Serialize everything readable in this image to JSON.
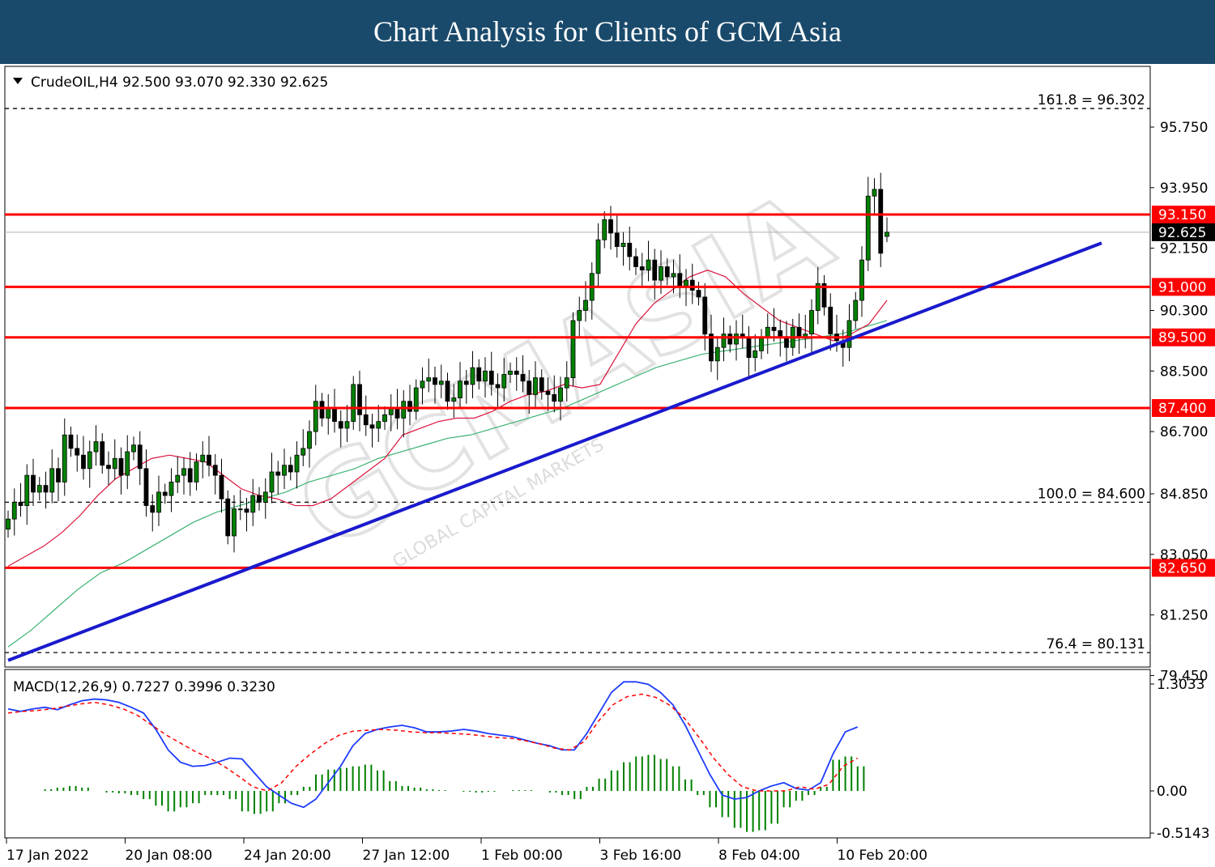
{
  "header": {
    "title": "Chart Analysis for Clients of GCM Asia"
  },
  "watermark": {
    "brand": "GCMASIA",
    "tagline": "GLOBAL CAPITAL MARKETS"
  },
  "colors": {
    "bull": "#008000",
    "bear": "#000000",
    "levels": "#ff0000",
    "trendline": "#1a1acd",
    "ma_fast": "#dc143c",
    "ma_slow": "#3cb371",
    "macd_main": "#1e3cff",
    "macd_signal": "#ff0000",
    "macd_hist": "#008000"
  },
  "chart_data": [
    {
      "type": "candlestick",
      "symbol_info": "CrudeOIL,H4  92.500 93.070 92.330 92.625",
      "timeframe": "H4",
      "ohlc_current": {
        "open": 92.5,
        "high": 93.07,
        "low": 92.33,
        "close": 92.625
      },
      "ylim": [
        79.0,
        97.0
      ],
      "y_ticks": [
        "95.750",
        "93.950",
        "92.150",
        "90.300",
        "88.500",
        "86.700",
        "84.850",
        "83.050",
        "81.250",
        "79.450"
      ],
      "x_tick_labels": [
        "17 Jan 2022",
        "20 Jan 08:00",
        "24 Jan 20:00",
        "27 Jan 12:00",
        "1 Feb 00:00",
        "3 Feb 16:00",
        "8 Feb 04:00",
        "10 Feb 20:00"
      ],
      "current_price_label": "92.625",
      "horizontal_levels": [
        {
          "value": 93.15,
          "label": "93.150"
        },
        {
          "value": 91.0,
          "label": "91.000"
        },
        {
          "value": 89.5,
          "label": "89.500"
        },
        {
          "value": 87.4,
          "label": "87.400"
        },
        {
          "value": 82.65,
          "label": "82.650"
        }
      ],
      "fibonacci_levels": [
        {
          "value": 96.302,
          "label": "161.8 = 96.302"
        },
        {
          "value": 84.6,
          "label": "100.0 = 84.600"
        },
        {
          "value": 80.131,
          "label": "76.4 = 80.131"
        }
      ],
      "trendline": [
        {
          "bar": 0,
          "value": 79.9
        },
        {
          "bar": 140,
          "value": 92.3
        }
      ],
      "closes": [
        84.1,
        84.6,
        84.5,
        85.4,
        84.9,
        85.1,
        84.9,
        85.6,
        85.2,
        86.6,
        86.2,
        86.0,
        85.6,
        86.1,
        86.4,
        85.7,
        85.6,
        85.9,
        85.4,
        86.1,
        86.3,
        85.6,
        84.5,
        84.3,
        84.9,
        84.8,
        85.2,
        85.4,
        85.6,
        85.2,
        85.8,
        86.0,
        85.7,
        85.4,
        84.7,
        83.6,
        84.4,
        84.4,
        84.3,
        84.8,
        84.6,
        84.9,
        85.5,
        85.4,
        85.7,
        85.5,
        86.0,
        86.2,
        86.7,
        87.6,
        87.1,
        87.4,
        87.0,
        86.8,
        87.0,
        88.1,
        87.2,
        86.9,
        86.8,
        87.0,
        87.2,
        87.4,
        87.1,
        87.6,
        87.3,
        88.0,
        88.2,
        88.3,
        88.1,
        88.2,
        87.6,
        87.7,
        88.2,
        88.1,
        88.6,
        88.2,
        88.5,
        88.1,
        88.0,
        88.4,
        88.5,
        88.4,
        88.2,
        87.8,
        88.3,
        87.9,
        87.8,
        87.6,
        88.0,
        88.3,
        90.0,
        90.3,
        90.6,
        91.4,
        92.4,
        93.0,
        92.6,
        92.2,
        92.3,
        91.9,
        91.6,
        91.5,
        91.8,
        91.2,
        91.6,
        91.3,
        91.4,
        91.0,
        91.2,
        90.9,
        90.7,
        89.6,
        88.8,
        89.2,
        89.6,
        89.3,
        89.6,
        89.5,
        88.9,
        89.1,
        89.5,
        89.8,
        89.7,
        89.5,
        89.2,
        89.8,
        89.5,
        89.6,
        90.3,
        91.1,
        90.4,
        89.6,
        89.4,
        89.2,
        90.0,
        90.6,
        91.8,
        93.7,
        93.9,
        92.0,
        92.625
      ],
      "ma_fast": {
        "name": "MA fast",
        "start_bar": 0,
        "values": [
          82.7,
          83.0,
          83.3,
          83.7,
          84.2,
          84.8,
          85.3,
          85.6,
          85.9,
          86.0,
          85.9,
          85.8,
          85.4,
          85.0,
          84.8,
          84.7,
          84.5,
          84.5,
          84.7,
          85.1,
          85.5,
          85.9,
          86.6,
          86.8,
          87.0,
          87.1,
          87.1,
          87.3,
          87.6,
          87.8,
          87.9,
          88.1,
          88.0,
          88.1,
          89.0,
          89.9,
          90.5,
          90.9,
          91.3,
          91.5,
          91.3,
          90.8,
          90.4,
          90.0,
          89.8,
          89.6,
          89.4,
          89.6,
          89.9,
          90.6
        ]
      },
      "ma_slow": {
        "name": "MA slow",
        "start_bar": 0,
        "values": [
          80.3,
          80.8,
          81.4,
          82.0,
          82.5,
          82.8,
          83.2,
          83.6,
          84.0,
          84.3,
          84.5,
          84.7,
          84.9,
          85.2,
          85.4,
          85.6,
          85.9,
          86.1,
          86.3,
          86.5,
          86.6,
          86.8,
          87.0,
          87.2,
          87.4,
          87.7,
          88.0,
          88.3,
          88.6,
          88.8,
          89.0,
          89.1,
          89.2,
          89.3,
          89.4,
          89.5,
          89.6,
          89.8,
          90.0
        ]
      }
    },
    {
      "type": "macd",
      "title": "MACD(12,26,9) 0.7227 0.3996 0.3230",
      "ylim": [
        -0.62,
        1.36
      ],
      "y_ticks": [
        "1.3033",
        "0.00",
        "-0.5143"
      ],
      "main": [
        1.0,
        0.97,
        1.0,
        1.02,
        0.99,
        1.05,
        1.1,
        1.12,
        1.11,
        1.08,
        1.02,
        0.95,
        0.75,
        0.5,
        0.35,
        0.3,
        0.31,
        0.35,
        0.4,
        0.39,
        0.22,
        0.05,
        -0.05,
        -0.15,
        -0.2,
        -0.1,
        0.1,
        0.3,
        0.55,
        0.7,
        0.75,
        0.78,
        0.8,
        0.77,
        0.72,
        0.72,
        0.73,
        0.75,
        0.73,
        0.7,
        0.68,
        0.66,
        0.62,
        0.58,
        0.55,
        0.5,
        0.5,
        0.7,
        0.95,
        1.2,
        1.33,
        1.33,
        1.3,
        1.2,
        1.05,
        0.8,
        0.5,
        0.2,
        -0.05,
        -0.1,
        -0.08,
        0.0,
        0.06,
        0.1,
        0.03,
        0.01,
        0.1,
        0.45,
        0.72,
        0.78
      ],
      "signal": [
        0.95,
        0.97,
        0.98,
        1.0,
        1.03,
        1.06,
        1.08,
        1.05,
        1.0,
        0.92,
        0.8,
        0.68,
        0.58,
        0.48,
        0.4,
        0.3,
        0.18,
        0.05,
        0.0,
        0.1,
        0.3,
        0.45,
        0.58,
        0.68,
        0.73,
        0.74,
        0.75,
        0.74,
        0.72,
        0.71,
        0.71,
        0.7,
        0.69,
        0.67,
        0.65,
        0.64,
        0.61,
        0.57,
        0.52,
        0.5,
        0.6,
        0.85,
        1.05,
        1.15,
        1.18,
        1.14,
        1.04,
        0.88,
        0.65,
        0.4,
        0.2,
        0.05,
        0.0,
        0.0,
        0.0,
        0.05,
        0.02,
        0.08,
        0.3,
        0.4
      ],
      "signal_start_bar": 10,
      "histogram": [
        0.0,
        0.0,
        0.0,
        0.02,
        0.04,
        0.06,
        0.04,
        0.0,
        -0.02,
        -0.03,
        -0.05,
        -0.1,
        -0.18,
        -0.25,
        -0.2,
        -0.15,
        -0.05,
        -0.05,
        -0.1,
        -0.25,
        -0.28,
        -0.25,
        -0.15,
        -0.05,
        0.05,
        0.2,
        0.26,
        0.28,
        0.3,
        0.32,
        0.25,
        0.12,
        0.06,
        0.04,
        0.02,
        0.01,
        0.0,
        -0.01,
        -0.02,
        -0.01,
        0.0,
        0.01,
        0.01,
        0.0,
        -0.02,
        -0.05,
        -0.1,
        0.05,
        0.15,
        0.25,
        0.35,
        0.42,
        0.44,
        0.39,
        0.3,
        0.14,
        -0.05,
        -0.2,
        -0.32,
        -0.45,
        -0.5,
        -0.48,
        -0.4,
        -0.2,
        -0.12,
        -0.05,
        0.05,
        0.38,
        0.42,
        0.3
      ]
    }
  ]
}
